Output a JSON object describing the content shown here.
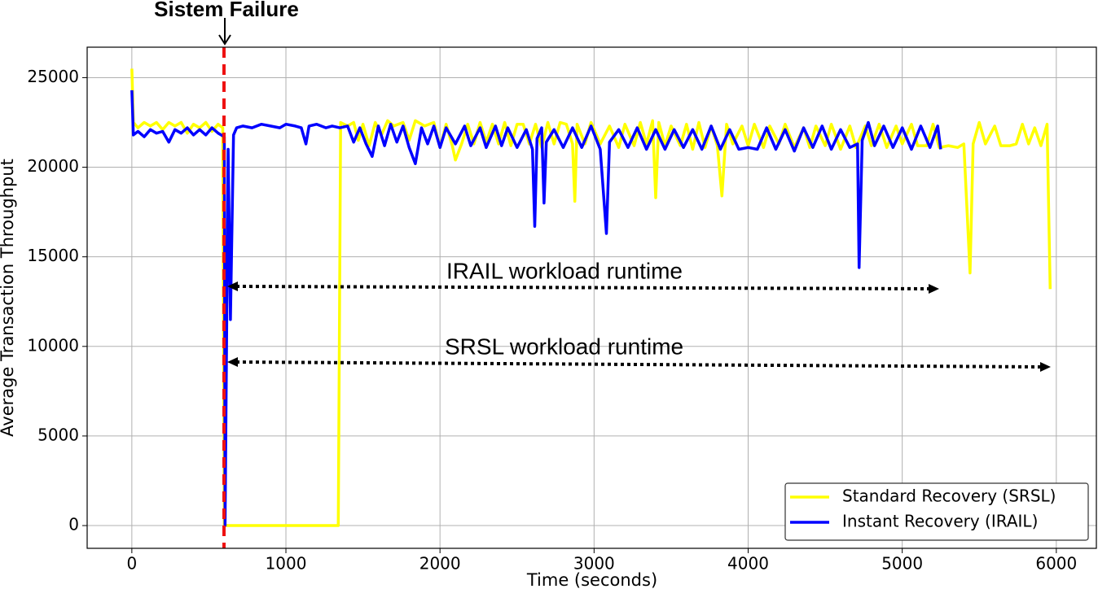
{
  "chart_data": {
    "type": "line",
    "xlabel": "Time (seconds)",
    "ylabel": "Average Transaction Throughput",
    "annotations": [
      "Sistem Failure",
      "IRAIL workload runtime",
      "SRSL workload runtime"
    ],
    "xlim": [
      -290,
      6260
    ],
    "xticks": [
      0,
      1000,
      2000,
      3000,
      4000,
      5000,
      6000
    ],
    "ylim": [
      -1270,
      26700
    ],
    "yticks": [
      0,
      5000,
      10000,
      15000,
      20000,
      25000
    ],
    "grid": true,
    "legend": "lower right",
    "series": [
      {
        "name": "Standard Recovery (SRSL)",
        "color": "#ffff00",
        "x": [
          0,
          10,
          40,
          80,
          120,
          160,
          200,
          240,
          280,
          320,
          360,
          400,
          440,
          480,
          520,
          560,
          590,
          600,
          1340,
          1355,
          1400,
          1440,
          1470,
          1500,
          1540,
          1580,
          1620,
          1660,
          1700,
          1760,
          1800,
          1840,
          1900,
          1960,
          2000,
          2040,
          2080,
          2100,
          2140,
          2180,
          2220,
          2260,
          2300,
          2340,
          2380,
          2420,
          2460,
          2500,
          2540,
          2580,
          2620,
          2660,
          2700,
          2740,
          2780,
          2820,
          2860,
          2875,
          2890,
          2940,
          2980,
          3040,
          3100,
          3160,
          3200,
          3260,
          3300,
          3340,
          3380,
          3400,
          3420,
          3460,
          3500,
          3560,
          3600,
          3640,
          3680,
          3720,
          3760,
          3800,
          3830,
          3860,
          3900,
          3960,
          4000,
          4040,
          4100,
          4140,
          4200,
          4240,
          4300,
          4360,
          4400,
          4440,
          4500,
          4540,
          4600,
          4660,
          4700,
          4760,
          4800,
          4850,
          4900,
          4960,
          5000,
          5060,
          5100,
          5160,
          5200,
          5240,
          5300,
          5360,
          5400,
          5440,
          5460,
          5500,
          5540,
          5600,
          5640,
          5700,
          5740,
          5780,
          5820,
          5860,
          5900,
          5940,
          5960
        ],
        "values": [
          25500,
          22500,
          22200,
          22500,
          22300,
          22500,
          22100,
          22500,
          22300,
          22500,
          21900,
          22400,
          22200,
          22500,
          22000,
          22400,
          22200,
          0,
          0,
          22500,
          22300,
          22500,
          21500,
          22400,
          21200,
          22500,
          21800,
          22600,
          22300,
          22500,
          21500,
          22600,
          22300,
          22500,
          21100,
          22400,
          21200,
          20400,
          21300,
          22400,
          21300,
          22500,
          21400,
          22400,
          21300,
          22500,
          21200,
          22400,
          22400,
          21300,
          22400,
          21100,
          22500,
          21300,
          22500,
          22400,
          21300,
          18100,
          22400,
          21300,
          22500,
          21300,
          22300,
          21100,
          22400,
          21200,
          22500,
          21300,
          22600,
          18300,
          22500,
          21200,
          22300,
          21200,
          22400,
          21000,
          22500,
          21100,
          22300,
          21200,
          18400,
          22400,
          21300,
          22300,
          21200,
          22400,
          21100,
          22300,
          21300,
          22400,
          21100,
          22200,
          21100,
          22300,
          21200,
          22400,
          21000,
          22300,
          21100,
          22300,
          21200,
          22400,
          21100,
          22300,
          21300,
          22400,
          21200,
          21200,
          22400,
          21100,
          21200,
          21100,
          21300,
          14100,
          21300,
          22500,
          21300,
          22300,
          21200,
          21200,
          21300,
          22400,
          21300,
          22200,
          21200,
          22400,
          13200
        ]
      },
      {
        "name": "Instant Recovery (IRAIL)",
        "color": "#0000ff",
        "x": [
          0,
          10,
          40,
          80,
          120,
          160,
          200,
          240,
          280,
          320,
          360,
          400,
          440,
          480,
          520,
          560,
          600,
          605,
          625,
          640,
          660,
          680,
          720,
          780,
          840,
          900,
          960,
          1000,
          1060,
          1100,
          1130,
          1150,
          1200,
          1260,
          1300,
          1350,
          1400,
          1440,
          1480,
          1520,
          1560,
          1600,
          1640,
          1680,
          1720,
          1760,
          1800,
          1840,
          1880,
          1920,
          1960,
          2000,
          2040,
          2100,
          2160,
          2200,
          2260,
          2300,
          2360,
          2400,
          2440,
          2500,
          2560,
          2600,
          2615,
          2630,
          2660,
          2675,
          2690,
          2740,
          2800,
          2860,
          2920,
          2980,
          3040,
          3080,
          3100,
          3160,
          3220,
          3280,
          3340,
          3400,
          3460,
          3520,
          3580,
          3640,
          3700,
          3760,
          3820,
          3880,
          3940,
          4000,
          4060,
          4120,
          4180,
          4240,
          4300,
          4360,
          4420,
          4480,
          4540,
          4600,
          4660,
          4710,
          4720,
          4740,
          4780,
          4820,
          4880,
          4940,
          5000,
          5060,
          5120,
          5180,
          5230,
          5250
        ],
        "values": [
          24300,
          21800,
          22000,
          21700,
          22100,
          21900,
          22000,
          21400,
          22100,
          21900,
          22200,
          21800,
          22100,
          21800,
          22200,
          21900,
          21700,
          0,
          21000,
          11500,
          21800,
          22200,
          22300,
          22200,
          22400,
          22300,
          22200,
          22400,
          22300,
          22200,
          21300,
          22300,
          22400,
          22200,
          22300,
          22200,
          22300,
          21400,
          22200,
          21300,
          20600,
          22300,
          21200,
          22400,
          21400,
          22300,
          21100,
          20200,
          22200,
          21300,
          22300,
          21100,
          22200,
          21300,
          22300,
          21200,
          22200,
          21100,
          22300,
          21200,
          22200,
          21100,
          22100,
          21000,
          16700,
          21600,
          22200,
          18000,
          21400,
          22100,
          21100,
          22200,
          21100,
          22300,
          21000,
          16300,
          21400,
          22100,
          21100,
          22200,
          21000,
          22100,
          21000,
          22100,
          21100,
          22100,
          21000,
          22300,
          21000,
          22100,
          21000,
          21100,
          21000,
          22200,
          21000,
          22100,
          20900,
          22200,
          21100,
          22300,
          21000,
          22100,
          21100,
          21300,
          14400,
          21500,
          22500,
          21200,
          22300,
          21100,
          22200,
          21000,
          22300,
          21100,
          22300,
          21000
        ]
      }
    ]
  }
}
